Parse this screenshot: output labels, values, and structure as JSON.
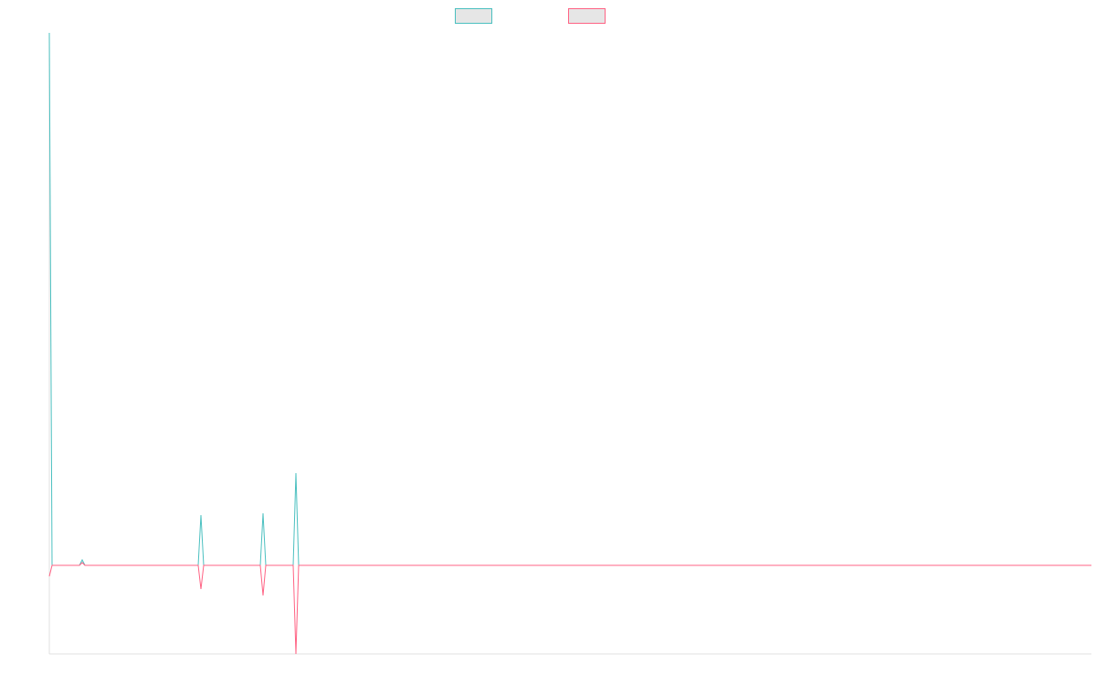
{
  "chart_data": {
    "type": "line",
    "x": [
      0,
      3,
      33,
      36,
      39,
      163,
      166,
      169,
      231,
      234,
      237,
      267,
      270,
      273,
      1141
    ],
    "xlim": [
      0,
      1141
    ],
    "ylim": [
      -97,
      583
    ],
    "series": [
      {
        "color": "#4bc0c0",
        "values": [
          583,
          0,
          0,
          6,
          0,
          0,
          55,
          0,
          0,
          57,
          0,
          0,
          101,
          0,
          0
        ]
      },
      {
        "color": "#ff6384",
        "values": [
          -12,
          0,
          0,
          3,
          0,
          0,
          -26,
          0,
          0,
          -33,
          0,
          0,
          -97,
          0,
          0
        ]
      }
    ],
    "legend": "top"
  }
}
